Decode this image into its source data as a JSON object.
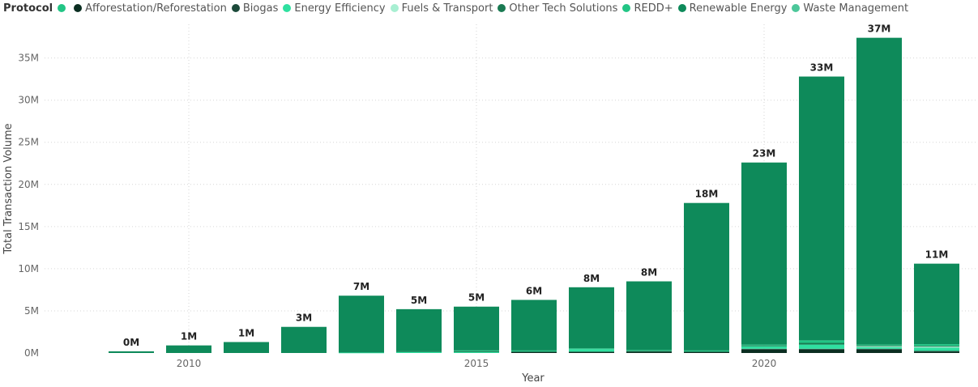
{
  "legend": {
    "title": "Protocol",
    "items": [
      {
        "label": "Afforestation/Reforestation",
        "color": "#0b2e21"
      },
      {
        "label": "Biogas",
        "color": "#1c4a3a"
      },
      {
        "label": "Energy Efficiency",
        "color": "#2fe0a0"
      },
      {
        "label": "Fuels & Transport",
        "color": "#a8efd2"
      },
      {
        "label": "Other Tech Solutions",
        "color": "#1a7a52"
      },
      {
        "label": "REDD+",
        "color": "#22c585"
      },
      {
        "label": "Renewable Energy",
        "color": "#0e8a5a"
      },
      {
        "label": "Waste Management",
        "color": "#4cc79a"
      }
    ],
    "first_dot_color": "#22c585"
  },
  "chart_data": {
    "type": "bar",
    "stacked": true,
    "title": "",
    "xlabel": "Year",
    "ylabel": "Total Transaction Volume",
    "ylim": [
      0,
      39000000
    ],
    "y_ticks": [
      0,
      5000000,
      10000000,
      15000000,
      20000000,
      25000000,
      30000000,
      35000000
    ],
    "y_tick_labels": [
      "0M",
      "5M",
      "10M",
      "15M",
      "20M",
      "25M",
      "30M",
      "35M"
    ],
    "categories": [
      2009,
      2010,
      2011,
      2012,
      2013,
      2014,
      2015,
      2016,
      2017,
      2018,
      2019,
      2020,
      2021,
      2022,
      2023
    ],
    "x_tick_labels": [
      {
        "year": 2010,
        "label": "2010"
      },
      {
        "year": 2015,
        "label": "2015"
      },
      {
        "year": 2020,
        "label": "2020"
      }
    ],
    "totals": [
      200000,
      900000,
      1300000,
      3100000,
      6800000,
      5200000,
      5500000,
      6300000,
      7800000,
      8500000,
      17800000,
      22600000,
      32800000,
      37400000,
      10600000
    ],
    "total_labels": [
      "0M",
      "1M",
      "1M",
      "3M",
      "7M",
      "5M",
      "5M",
      "6M",
      "8M",
      "8M",
      "18M",
      "23M",
      "33M",
      "37M",
      "11M"
    ],
    "series": [
      {
        "name": "Afforestation/Reforestation",
        "color": "#0b2e21",
        "values": [
          0,
          0,
          0,
          0,
          0,
          0,
          0,
          150000,
          150000,
          150000,
          150000,
          400000,
          400000,
          400000,
          150000
        ]
      },
      {
        "name": "Biogas",
        "color": "#1c4a3a",
        "values": [
          0,
          0,
          0,
          0,
          0,
          0,
          0,
          0,
          0,
          0,
          0,
          100000,
          100000,
          100000,
          100000
        ]
      },
      {
        "name": "Energy Efficiency",
        "color": "#2fe0a0",
        "values": [
          0,
          0,
          0,
          0,
          50000,
          150000,
          100000,
          0,
          300000,
          0,
          0,
          300000,
          500000,
          200000,
          400000
        ]
      },
      {
        "name": "Fuels & Transport",
        "color": "#a8efd2",
        "values": [
          0,
          0,
          0,
          0,
          0,
          0,
          0,
          0,
          0,
          0,
          0,
          0,
          0,
          100000,
          100000
        ]
      },
      {
        "name": "Other Tech Solutions",
        "color": "#1a7a52",
        "values": [
          0,
          0,
          0,
          0,
          0,
          50000,
          100000,
          0,
          0,
          100000,
          0,
          100000,
          200000,
          100000,
          100000
        ]
      },
      {
        "name": "REDD+",
        "color": "#22c585",
        "values": [
          0,
          0,
          0,
          0,
          0,
          0,
          100000,
          150000,
          100000,
          100000,
          150000,
          100000,
          300000,
          100000,
          200000
        ]
      },
      {
        "name": "Renewable Energy",
        "color": "#0e8a5a",
        "values": [
          200000,
          900000,
          1300000,
          3100000,
          6750000,
          5000000,
          5200000,
          6000000,
          7250000,
          8150000,
          17500000,
          21600000,
          31300000,
          36400000,
          9550000
        ]
      },
      {
        "name": "Waste Management",
        "color": "#4cc79a",
        "values": [
          0,
          0,
          0,
          0,
          0,
          0,
          0,
          0,
          0,
          0,
          0,
          0,
          0,
          0,
          0
        ]
      }
    ],
    "grid": true,
    "legend_position": "top-left"
  }
}
